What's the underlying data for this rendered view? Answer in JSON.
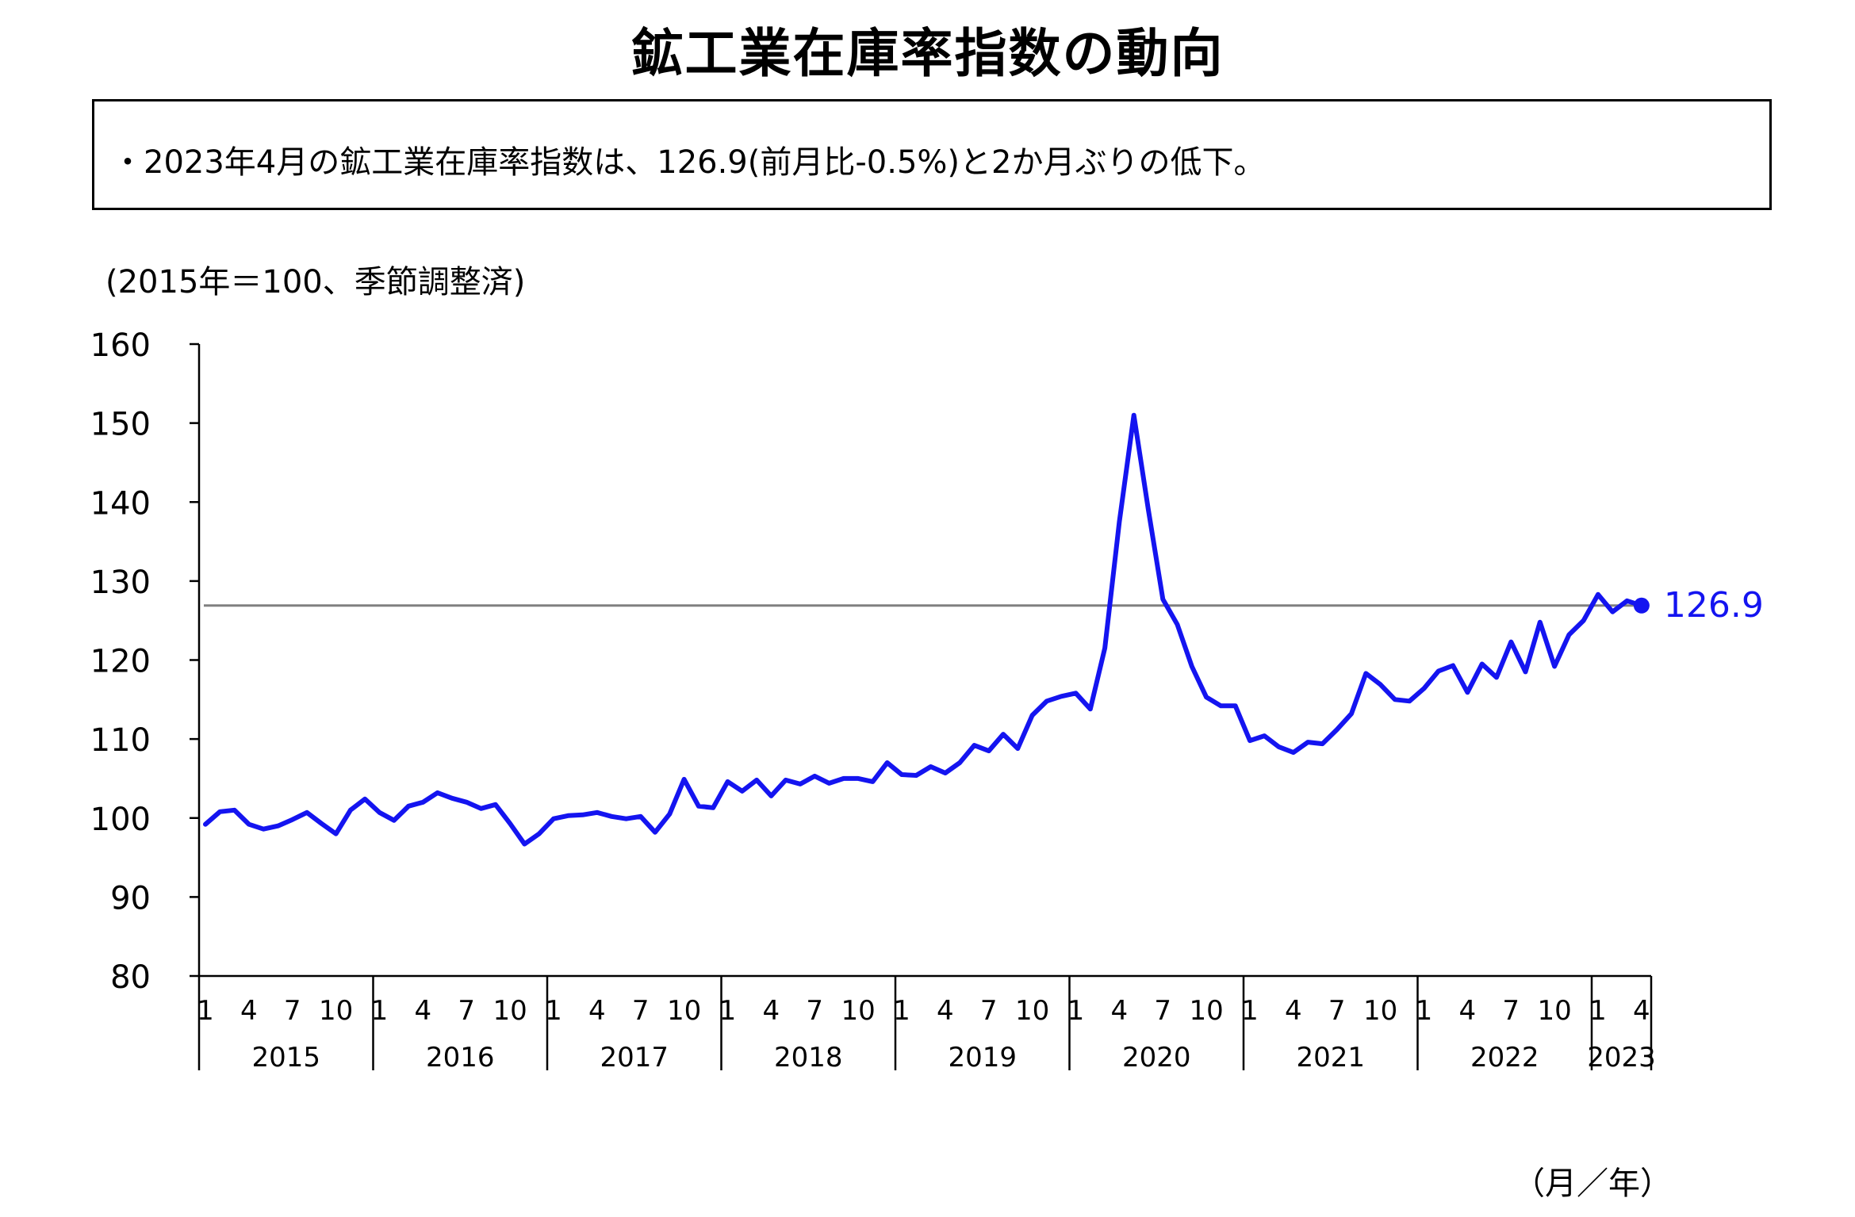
{
  "title": "鉱工業在庫率指数の動向",
  "summary": "・2023年4月の鉱工業在庫率指数は、126.9(前月比-0.5%)と2か月ぶりの低下。",
  "unit_note": "(2015年＝100、季節調整済)",
  "x_axis_unit": "（月／年）",
  "colors": {
    "series": "#1414f0",
    "reference_line": "#808080",
    "axis": "#000000"
  },
  "chart_data": {
    "type": "line",
    "title": "鉱工業在庫率指数の動向",
    "ylabel": "(2015年＝100、季節調整済)",
    "xlabel": "（月／年）",
    "ylim": [
      80,
      160
    ],
    "yticks": [
      80,
      90,
      100,
      110,
      120,
      130,
      140,
      150,
      160
    ],
    "grid": false,
    "years": [
      "2015",
      "2016",
      "2017",
      "2018",
      "2019",
      "2020",
      "2021",
      "2022",
      "2023"
    ],
    "month_ticks": [
      "1",
      "4",
      "7",
      "10"
    ],
    "last_year_month_ticks": [
      "1",
      "4"
    ],
    "reference_line": 126.9,
    "last_point_label": "126.9",
    "x_start": "2015-01",
    "series": [
      {
        "values": [
          99.2,
          100.8,
          101.0,
          99.2,
          98.6,
          99.0,
          99.8,
          100.7,
          99.3,
          98.0,
          101.0,
          102.4,
          100.7,
          99.7,
          101.5,
          102.0,
          103.2,
          102.5,
          102.0,
          101.2,
          101.7,
          99.3,
          96.7,
          98.0,
          99.9,
          100.3,
          100.4,
          100.7,
          100.2,
          99.9,
          100.2,
          98.2,
          100.5,
          104.9,
          101.5,
          101.3,
          104.6,
          103.4,
          104.8,
          102.8,
          104.8,
          104.3,
          105.3,
          104.4,
          105.0,
          105.0,
          104.6,
          107.0,
          105.5,
          105.4,
          106.5,
          105.7,
          107.0,
          109.2,
          108.5,
          110.6,
          108.8,
          113.0,
          114.8,
          115.4,
          115.8,
          113.8,
          121.5,
          137.5,
          151.0,
          139.0,
          127.7,
          124.5,
          119.2,
          115.3,
          114.2,
          114.2,
          109.8,
          110.4,
          109.0,
          108.3,
          109.6,
          109.4,
          111.2,
          113.2,
          118.3,
          116.9,
          115.0,
          114.8,
          116.4,
          118.6,
          119.3,
          115.9,
          119.5,
          117.8,
          122.3,
          118.5,
          124.8,
          119.2,
          123.2,
          125.0,
          128.3,
          126.1,
          127.5,
          126.9
        ]
      }
    ]
  }
}
